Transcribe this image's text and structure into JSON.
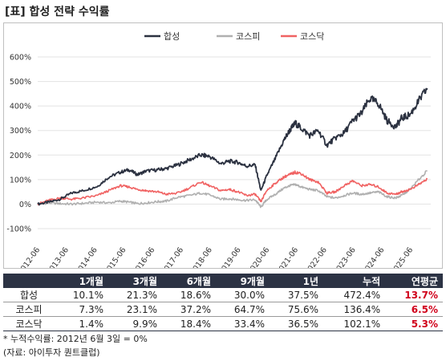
{
  "title": "[표] 합성 전략 수익률",
  "chart_data": {
    "type": "line",
    "ylim": [
      -100,
      600
    ],
    "y_ticks": [
      "600%",
      "500%",
      "400%",
      "300%",
      "200%",
      "100%",
      "0%",
      "-100%"
    ],
    "y_tick_values": [
      600,
      500,
      400,
      300,
      200,
      100,
      0,
      -100
    ],
    "x_ticks": [
      "2012-06",
      "2013-06",
      "2014-06",
      "2015-06",
      "2016-06",
      "2017-06",
      "2018-06",
      "2019-06",
      "2020-06",
      "2021-06",
      "2022-06",
      "2023-06",
      "2024-06",
      "2025-06"
    ],
    "x_tick_values": [
      2012.5,
      2013.5,
      2014.5,
      2015.5,
      2016.5,
      2017.5,
      2018.5,
      2019.5,
      2020.5,
      2021.5,
      2022.5,
      2023.5,
      2024.5,
      2025.5
    ],
    "xlim": [
      2012.42,
      2026.12
    ],
    "grid": "horizontal",
    "legend": "top-center",
    "series": [
      {
        "name": "합성",
        "color": "#2b3140",
        "points": [
          [
            2012.42,
            0
          ],
          [
            2012.8,
            8
          ],
          [
            2013.2,
            20
          ],
          [
            2013.6,
            45
          ],
          [
            2014.0,
            55
          ],
          [
            2014.5,
            72
          ],
          [
            2014.9,
            110
          ],
          [
            2015.3,
            130
          ],
          [
            2015.6,
            140
          ],
          [
            2015.9,
            120
          ],
          [
            2016.2,
            135
          ],
          [
            2016.6,
            140
          ],
          [
            2016.9,
            145
          ],
          [
            2017.3,
            160
          ],
          [
            2017.7,
            180
          ],
          [
            2018.1,
            200
          ],
          [
            2018.4,
            195
          ],
          [
            2018.8,
            165
          ],
          [
            2019.1,
            175
          ],
          [
            2019.4,
            170
          ],
          [
            2019.7,
            155
          ],
          [
            2020.0,
            160
          ],
          [
            2020.2,
            55
          ],
          [
            2020.4,
            115
          ],
          [
            2020.7,
            185
          ],
          [
            2021.0,
            260
          ],
          [
            2021.2,
            300
          ],
          [
            2021.4,
            330
          ],
          [
            2021.6,
            310
          ],
          [
            2021.9,
            280
          ],
          [
            2022.2,
            300
          ],
          [
            2022.5,
            240
          ],
          [
            2022.8,
            270
          ],
          [
            2023.1,
            290
          ],
          [
            2023.4,
            340
          ],
          [
            2023.7,
            370
          ],
          [
            2024.0,
            430
          ],
          [
            2024.3,
            410
          ],
          [
            2024.6,
            340
          ],
          [
            2024.9,
            315
          ],
          [
            2025.1,
            350
          ],
          [
            2025.4,
            365
          ],
          [
            2025.7,
            420
          ],
          [
            2026.0,
            472
          ]
        ]
      },
      {
        "name": "코스피",
        "color": "#b0b0b0",
        "points": [
          [
            2012.42,
            0
          ],
          [
            2012.8,
            5
          ],
          [
            2013.2,
            2
          ],
          [
            2013.6,
            0
          ],
          [
            2014.0,
            3
          ],
          [
            2014.5,
            8
          ],
          [
            2014.9,
            5
          ],
          [
            2015.3,
            12
          ],
          [
            2015.6,
            8
          ],
          [
            2015.9,
            2
          ],
          [
            2016.2,
            5
          ],
          [
            2016.6,
            10
          ],
          [
            2016.9,
            12
          ],
          [
            2017.3,
            28
          ],
          [
            2017.7,
            35
          ],
          [
            2018.1,
            45
          ],
          [
            2018.4,
            38
          ],
          [
            2018.8,
            20
          ],
          [
            2019.1,
            22
          ],
          [
            2019.4,
            18
          ],
          [
            2019.7,
            15
          ],
          [
            2020.0,
            18
          ],
          [
            2020.2,
            -12
          ],
          [
            2020.4,
            18
          ],
          [
            2020.7,
            40
          ],
          [
            2021.0,
            65
          ],
          [
            2021.2,
            75
          ],
          [
            2021.4,
            80
          ],
          [
            2021.6,
            70
          ],
          [
            2021.9,
            60
          ],
          [
            2022.2,
            55
          ],
          [
            2022.5,
            30
          ],
          [
            2022.8,
            25
          ],
          [
            2023.1,
            35
          ],
          [
            2023.4,
            45
          ],
          [
            2023.7,
            40
          ],
          [
            2024.0,
            45
          ],
          [
            2024.3,
            50
          ],
          [
            2024.6,
            30
          ],
          [
            2024.9,
            25
          ],
          [
            2025.1,
            35
          ],
          [
            2025.4,
            60
          ],
          [
            2025.7,
            100
          ],
          [
            2026.0,
            136
          ]
        ]
      },
      {
        "name": "코스닥",
        "color": "#f06262",
        "points": [
          [
            2012.42,
            0
          ],
          [
            2012.8,
            15
          ],
          [
            2013.2,
            25
          ],
          [
            2013.6,
            20
          ],
          [
            2014.0,
            25
          ],
          [
            2014.5,
            35
          ],
          [
            2014.9,
            55
          ],
          [
            2015.3,
            75
          ],
          [
            2015.6,
            70
          ],
          [
            2015.9,
            60
          ],
          [
            2016.2,
            55
          ],
          [
            2016.6,
            50
          ],
          [
            2016.9,
            40
          ],
          [
            2017.3,
            45
          ],
          [
            2017.7,
            65
          ],
          [
            2018.1,
            90
          ],
          [
            2018.4,
            75
          ],
          [
            2018.8,
            55
          ],
          [
            2019.1,
            60
          ],
          [
            2019.4,
            50
          ],
          [
            2019.7,
            35
          ],
          [
            2020.0,
            40
          ],
          [
            2020.2,
            10
          ],
          [
            2020.4,
            55
          ],
          [
            2020.7,
            85
          ],
          [
            2021.0,
            110
          ],
          [
            2021.2,
            120
          ],
          [
            2021.4,
            130
          ],
          [
            2021.6,
            125
          ],
          [
            2021.9,
            100
          ],
          [
            2022.2,
            90
          ],
          [
            2022.5,
            45
          ],
          [
            2022.8,
            50
          ],
          [
            2023.1,
            75
          ],
          [
            2023.4,
            95
          ],
          [
            2023.7,
            75
          ],
          [
            2024.0,
            80
          ],
          [
            2024.3,
            70
          ],
          [
            2024.6,
            45
          ],
          [
            2024.9,
            40
          ],
          [
            2025.1,
            50
          ],
          [
            2025.4,
            60
          ],
          [
            2025.7,
            80
          ],
          [
            2026.0,
            102
          ]
        ]
      }
    ]
  },
  "table": {
    "headers": [
      "",
      "1개월",
      "3개월",
      "6개월",
      "9개월",
      "1년",
      "누적",
      "연평균"
    ],
    "rows": [
      {
        "label": "합성",
        "values": [
          "10.1%",
          "21.3%",
          "18.6%",
          "30.0%",
          "37.5%",
          "472.4%"
        ],
        "annual": "13.7%"
      },
      {
        "label": "코스피",
        "values": [
          "7.3%",
          "23.1%",
          "37.2%",
          "64.7%",
          "75.6%",
          "136.4%"
        ],
        "annual": "6.5%"
      },
      {
        "label": "코스닥",
        "values": [
          "1.4%",
          "9.9%",
          "18.4%",
          "33.4%",
          "36.5%",
          "102.1%"
        ],
        "annual": "5.3%"
      }
    ]
  },
  "notes": {
    "line1": "* 누적수익률: 2012년 6월 3일 = 0%",
    "line2": "(자료: 아이투자 퀀트클럽)"
  }
}
